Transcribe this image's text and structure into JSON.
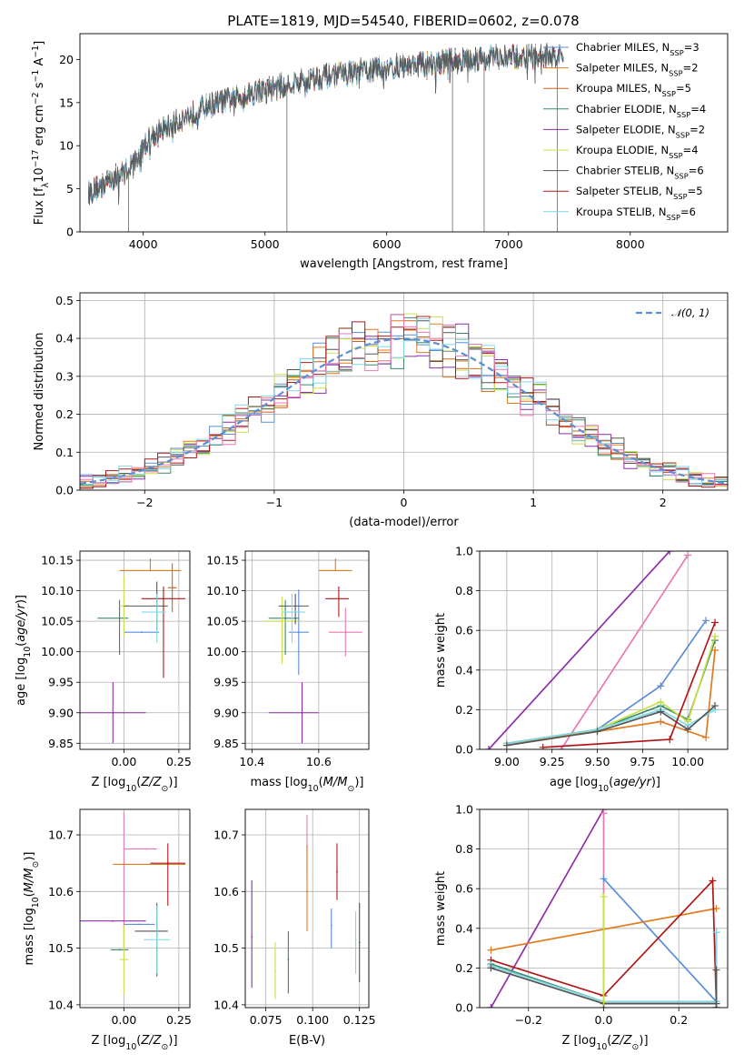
{
  "title": "PLATE=1819, MJD=54540, FIBERID=0602, z=0.078",
  "colors": {
    "Chabrier MILES": "#5b8dd8",
    "Salpeter MILES": "#e07b1e",
    "Kroupa MILES": "#c8651b",
    "Chabrier ELODIE": "#3a8a6a",
    "Salpeter ELODIE": "#8e2faa",
    "Kroupa ELODIE": "#c8e04a",
    "Chabrier STELIB": "#555555",
    "Salpeter STELIB": "#b01818",
    "Kroupa STELIB": "#7fd9e6",
    "pink": "#e77ab4",
    "normal_curve": "#5b8dd8"
  },
  "chart_data": [
    {
      "type": "line",
      "name": "spectrum",
      "xlabel": "wavelength [Angstrom, rest frame]",
      "ylabel": "Flux [f_λ 10^-17 erg cm^-2 s^-1 A^-1]",
      "xlim": [
        3480,
        8800
      ],
      "ylim": [
        0,
        23
      ],
      "xticks": [
        4000,
        5000,
        6000,
        7000,
        8000
      ],
      "yticks": [
        0,
        5,
        10,
        15,
        20
      ],
      "legend_position": "top-right",
      "legend": [
        {
          "label": "Chabrier MILES, N_SSP=3",
          "base": "Chabrier MILES, N",
          "sub": "SSP",
          "tail": "=3"
        },
        {
          "label": "Salpeter MILES, N_SSP=2",
          "base": "Salpeter MILES, N",
          "sub": "SSP",
          "tail": "=2"
        },
        {
          "label": "Kroupa MILES, N_SSP=5",
          "base": "Kroupa MILES, N",
          "sub": "SSP",
          "tail": "=5"
        },
        {
          "label": "Chabrier ELODIE, N_SSP=4",
          "base": "Chabrier ELODIE, N",
          "sub": "SSP",
          "tail": "=4"
        },
        {
          "label": "Salpeter ELODIE, N_SSP=2",
          "base": "Salpeter ELODIE, N",
          "sub": "SSP",
          "tail": "=2"
        },
        {
          "label": "Kroupa ELODIE, N_SSP=4",
          "base": "Kroupa ELODIE, N",
          "sub": "SSP",
          "tail": "=4"
        },
        {
          "label": "Chabrier STELIB, N_SSP=6",
          "base": "Chabrier STELIB, N",
          "sub": "SSP",
          "tail": "=6"
        },
        {
          "label": "Salpeter STELIB, N_SSP=5",
          "base": "Salpeter STELIB, N",
          "sub": "SSP",
          "tail": "=5"
        },
        {
          "label": "Kroupa STELIB, N_SSP=6",
          "base": "Kroupa STELIB, N",
          "sub": "SSP",
          "tail": "=6"
        }
      ],
      "continuum": {
        "x": [
          3550,
          3700,
          3850,
          3950,
          4050,
          4150,
          4300,
          4500,
          4700,
          4900,
          5100,
          5300,
          5500,
          5700,
          5900,
          6100,
          6300,
          6500,
          6700,
          6900,
          7100,
          7300,
          7450
        ],
        "y": [
          4.5,
          5.8,
          7.0,
          8.5,
          11.0,
          11.8,
          13.0,
          14.5,
          15.3,
          16.2,
          16.8,
          17.5,
          18.1,
          18.5,
          18.8,
          19.2,
          19.5,
          19.8,
          20.0,
          20.2,
          20.3,
          20.4,
          20.3
        ]
      },
      "drops": [
        3880,
        5180,
        6540,
        6800,
        7400
      ]
    },
    {
      "type": "line",
      "name": "residual-histogram",
      "xlabel": "(data-model)/error",
      "ylabel": "Normed distribution",
      "xlim": [
        -2.5,
        2.5
      ],
      "ylim": [
        0,
        0.52
      ],
      "xticks": [
        -2,
        -1,
        0,
        1,
        2
      ],
      "yticks": [
        0,
        0.1,
        0.2,
        0.3,
        0.4,
        0.5
      ],
      "legend_position": "top-right",
      "reference_label": "N(0,1)",
      "bin_edges_range": [
        -2.5,
        2.5
      ],
      "bins": 50,
      "amplitude": 0.399
    },
    {
      "type": "scatter",
      "name": "age-vs-Z",
      "xlabel": "Z [log10(Z/Z⊙)]",
      "ylabel": "age  [log10(age/yr)]",
      "xlim": [
        -0.2,
        0.3
      ],
      "ylim": [
        9.84,
        10.165
      ],
      "xticks": [
        0,
        0.25
      ],
      "yticks": [
        9.85,
        9.9,
        9.95,
        10.0,
        10.05,
        10.1,
        10.15
      ],
      "points": [
        {
          "series": "Chabrier MILES",
          "x": 0.08,
          "xerr": [
            0.08,
            0.08
          ],
          "y": 10.032,
          "yerr": [
            0,
            0
          ]
        },
        {
          "series": "Salpeter MILES",
          "x": 0.12,
          "xerr": [
            0.14,
            0.14
          ],
          "y": 10.133,
          "yerr": [
            0,
            0.02
          ]
        },
        {
          "series": "Kroupa MILES",
          "x": 0.22,
          "xerr": [
            0.02,
            0.02
          ],
          "y": 10.105,
          "yerr": [
            0.04,
            0.04
          ]
        },
        {
          "series": "Chabrier ELODIE",
          "x": -0.02,
          "xerr": [
            0.1,
            0.04
          ],
          "y": 10.055,
          "yerr": [
            0.06,
            0.03
          ]
        },
        {
          "series": "Salpeter ELODIE",
          "x": -0.05,
          "xerr": [
            0.15,
            0.15
          ],
          "y": 9.9,
          "yerr": [
            0.05,
            0.05
          ]
        },
        {
          "series": "Kroupa ELODIE",
          "x": 0.0,
          "xerr": [
            0.02,
            0.02
          ],
          "y": 10.075,
          "yerr": [
            0.05,
            0.05
          ]
        },
        {
          "series": "Chabrier STELIB",
          "x": 0.15,
          "xerr": [
            0.15,
            0.05
          ],
          "y": 10.075,
          "yerr": [
            0.04,
            0.04
          ]
        },
        {
          "series": "Salpeter STELIB",
          "x": 0.18,
          "xerr": [
            0.1,
            0.1
          ],
          "y": 10.087,
          "yerr": [
            0.13,
            0.02
          ]
        },
        {
          "series": "Kroupa STELIB",
          "x": 0.15,
          "xerr": [
            0.07,
            0.04
          ],
          "y": 10.065,
          "yerr": [
            0.05,
            0.03
          ]
        }
      ]
    },
    {
      "type": "scatter",
      "name": "age-vs-mass",
      "xlabel": "mass [log10(M/M⊙)]",
      "ylabel": "",
      "xlim": [
        10.38,
        10.75
      ],
      "ylim": [
        9.84,
        10.165
      ],
      "xticks": [
        10.4,
        10.6
      ],
      "yticks": [
        9.85,
        9.9,
        9.95,
        10.0,
        10.05,
        10.1,
        10.15
      ],
      "points": [
        {
          "series": "Chabrier MILES",
          "x": 10.54,
          "xerr": [
            0.03,
            0.03
          ],
          "y": 10.032,
          "yerr": [
            0.07,
            0.07
          ]
        },
        {
          "series": "Salpeter MILES",
          "x": 10.65,
          "xerr": [
            0.05,
            0.05
          ],
          "y": 10.133,
          "yerr": [
            0,
            0.02
          ]
        },
        {
          "series": "Pink",
          "x": 10.68,
          "xerr": [
            0.05,
            0.05
          ],
          "y": 10.032,
          "yerr": [
            0.04,
            0.04
          ]
        },
        {
          "series": "Chabrier ELODIE",
          "x": 10.5,
          "xerr": [
            0.05,
            0.04
          ],
          "y": 10.055,
          "yerr": [
            0.06,
            0.03
          ]
        },
        {
          "series": "Salpeter ELODIE",
          "x": 10.55,
          "xerr": [
            0.1,
            0.05
          ],
          "y": 9.9,
          "yerr": [
            0.05,
            0.05
          ]
        },
        {
          "series": "Kroupa ELODIE",
          "x": 10.49,
          "xerr": [
            0.05,
            0.05
          ],
          "y": 10.05,
          "yerr": [
            0.07,
            0.04
          ]
        },
        {
          "series": "Chabrier STELIB",
          "x": 10.53,
          "xerr": [
            0.05,
            0.04
          ],
          "y": 10.075,
          "yerr": [
            0.03,
            0.02
          ]
        },
        {
          "series": "Salpeter STELIB",
          "x": 10.66,
          "xerr": [
            0.04,
            0.03
          ],
          "y": 10.087,
          "yerr": [
            0.03,
            0.02
          ]
        },
        {
          "series": "Kroupa STELIB",
          "x": 10.52,
          "xerr": [
            0.03,
            0.04
          ],
          "y": 10.065,
          "yerr": [
            0.05,
            0.03
          ]
        }
      ]
    },
    {
      "type": "line",
      "name": "mass-weight-vs-age",
      "xlabel": "age  [log10(age/yr)]",
      "ylabel": "mass weight",
      "xlim": [
        8.85,
        10.22
      ],
      "ylim": [
        0,
        1.0
      ],
      "xticks": [
        9.0,
        9.25,
        9.5,
        9.75,
        10.0
      ],
      "yticks": [
        0,
        0.2,
        0.4,
        0.6,
        0.8,
        1.0
      ],
      "lines": [
        {
          "series": "Salpeter ELODIE",
          "x": [
            8.9,
            9.9
          ],
          "y": [
            0.0,
            1.0
          ]
        },
        {
          "series": "Pink",
          "x": [
            9.3,
            10.0
          ],
          "y": [
            0.0,
            0.98
          ]
        },
        {
          "series": "Chabrier MILES",
          "x": [
            9.0,
            9.5,
            9.85,
            10.1
          ],
          "y": [
            0.03,
            0.1,
            0.32,
            0.65
          ]
        },
        {
          "series": "Chabrier ELODIE",
          "x": [
            9.0,
            9.5,
            9.85,
            10.0,
            10.15
          ],
          "y": [
            0.03,
            0.1,
            0.22,
            0.15,
            0.55
          ]
        },
        {
          "series": "Kroupa ELODIE",
          "x": [
            9.0,
            9.5,
            9.85,
            10.0,
            10.15
          ],
          "y": [
            0.03,
            0.1,
            0.24,
            0.14,
            0.57
          ]
        },
        {
          "series": "Salpeter MILES",
          "x": [
            9.0,
            9.5,
            9.85,
            10.1,
            10.15
          ],
          "y": [
            0.03,
            0.09,
            0.14,
            0.06,
            0.5
          ]
        },
        {
          "series": "Kroupa STELIB",
          "x": [
            9.0,
            9.5,
            9.85,
            10.0,
            10.15
          ],
          "y": [
            0.03,
            0.1,
            0.2,
            0.12,
            0.2
          ]
        },
        {
          "series": "Chabrier STELIB",
          "x": [
            9.0,
            9.5,
            9.85,
            10.0,
            10.15
          ],
          "y": [
            0.02,
            0.09,
            0.19,
            0.1,
            0.22
          ]
        },
        {
          "series": "Salpeter STELIB",
          "x": [
            9.2,
            9.9,
            10.15
          ],
          "y": [
            0.01,
            0.05,
            0.64
          ]
        }
      ]
    },
    {
      "type": "scatter",
      "name": "mass-vs-Z",
      "xlabel": "Z [log10(Z/Z⊙)]",
      "ylabel": "mass [log10(M/M⊙)]",
      "xlim": [
        -0.2,
        0.3
      ],
      "ylim": [
        10.395,
        10.745
      ],
      "xticks": [
        0,
        0.25
      ],
      "yticks": [
        10.4,
        10.5,
        10.6,
        10.7
      ],
      "points": [
        {
          "series": "Pink",
          "x": 0.0,
          "xerr": [
            0,
            0
          ],
          "y": 10.6,
          "yerr": [
            0.1,
            0.14
          ]
        },
        {
          "series": "Pink2",
          "x": 0.1,
          "xerr": [
            0.1,
            0.05
          ],
          "y": 10.675,
          "yerr": [
            0,
            0
          ]
        },
        {
          "series": "Salpeter MILES",
          "x": 0.0,
          "xerr": [
            0.05,
            0.28
          ],
          "y": 10.648,
          "yerr": [
            0,
            0
          ]
        },
        {
          "series": "Salpeter STELIB",
          "x": 0.2,
          "xerr": [
            0.08,
            0.08
          ],
          "y": 10.65,
          "yerr": [
            0.075,
            0.035
          ]
        },
        {
          "series": "Salpeter ELODIE",
          "x": -0.05,
          "xerr": [
            0.15,
            0.15
          ],
          "y": 10.548,
          "yerr": [
            0,
            0
          ]
        },
        {
          "series": "Chabrier MILES",
          "x": 0.07,
          "xerr": [
            0.07,
            0.07
          ],
          "y": 10.542,
          "yerr": [
            0,
            0
          ]
        },
        {
          "series": "Chabrier STELIB",
          "x": 0.15,
          "xerr": [
            0.1,
            0.05
          ],
          "y": 10.53,
          "yerr": [
            0.08,
            0.05
          ]
        },
        {
          "series": "Kroupa STELIB",
          "x": 0.15,
          "xerr": [
            0.06,
            0.06
          ],
          "y": 10.515,
          "yerr": [
            0.06,
            0.06
          ]
        },
        {
          "series": "Chabrier ELODIE",
          "x": -0.02,
          "xerr": [
            0.04,
            0.04
          ],
          "y": 10.497,
          "yerr": [
            0,
            0
          ]
        },
        {
          "series": "Kroupa ELODIE",
          "x": 0.0,
          "xerr": [
            0.02,
            0.02
          ],
          "y": 10.48,
          "yerr": [
            0.06,
            0.06
          ]
        }
      ]
    },
    {
      "type": "scatter",
      "name": "mass-vs-EBV",
      "xlabel": "E(B-V)",
      "ylabel": "",
      "xlim": [
        0.064,
        0.13
      ],
      "ylim": [
        10.395,
        10.745
      ],
      "xticks": [
        0.075,
        0.1,
        0.125
      ],
      "yticks": [
        10.4,
        10.5,
        10.6,
        10.7
      ],
      "points": [
        {
          "series": "Salpeter ELODIE",
          "x": 0.0675,
          "y": 10.52,
          "yerr": [
            0.09,
            0.1
          ]
        },
        {
          "series": "Kroupa ELODIE",
          "x": 0.08,
          "y": 10.46,
          "yerr": [
            0.05,
            0.05
          ]
        },
        {
          "series": "Chabrier ELODIE",
          "x": 0.087,
          "y": 10.48,
          "yerr": [
            0.06,
            0.05
          ]
        },
        {
          "series": "Pink",
          "x": 0.097,
          "y": 10.68,
          "yerr": [
            0.05,
            0.055
          ]
        },
        {
          "series": "Salpeter MILES",
          "x": 0.097,
          "y": 10.6,
          "yerr": [
            0.07,
            0.08
          ]
        },
        {
          "series": "Salpeter STELIB",
          "x": 0.113,
          "y": 10.635,
          "yerr": [
            0.05,
            0.05
          ]
        },
        {
          "series": "Chabrier MILES",
          "x": 0.11,
          "y": 10.54,
          "yerr": [
            0.04,
            0.03
          ]
        },
        {
          "series": "Kroupa STELIB",
          "x": 0.123,
          "y": 10.515,
          "yerr": [
            0.06,
            0.05
          ]
        },
        {
          "series": "Chabrier STELIB",
          "x": 0.125,
          "y": 10.51,
          "yerr": [
            0.07,
            0.07
          ]
        }
      ]
    },
    {
      "type": "line",
      "name": "mass-weight-vs-Z",
      "xlabel": "Z [log10(Z/Z⊙)]",
      "ylabel": "mass weight",
      "xlim": [
        -0.33,
        0.33
      ],
      "ylim": [
        0,
        1.0
      ],
      "xticks": [
        -0.2,
        0.0,
        0.2
      ],
      "yticks": [
        0,
        0.2,
        0.4,
        0.6,
        0.8,
        1.0
      ],
      "lines": [
        {
          "series": "Salpeter ELODIE",
          "x": [
            -0.3,
            0.0
          ],
          "y": [
            0.0,
            1.0
          ]
        },
        {
          "series": "Pink",
          "x": [
            0.0,
            0.0
          ],
          "y": [
            0.0,
            0.98
          ]
        },
        {
          "series": "Chabrier MILES",
          "x": [
            0.0,
            0.3,
            0.3
          ],
          "y": [
            0.65,
            0.03,
            0.0
          ]
        },
        {
          "series": "Salpeter MILES",
          "x": [
            -0.3,
            0.3
          ],
          "y": [
            0.29,
            0.5
          ]
        },
        {
          "series": "Salpeter STELIB",
          "x": [
            -0.3,
            0.0,
            0.29,
            0.3
          ],
          "y": [
            0.24,
            0.06,
            0.64,
            0.0
          ]
        },
        {
          "series": "Chabrier ELODIE",
          "x": [
            -0.3,
            0.0,
            0.3,
            0.3
          ],
          "y": [
            0.22,
            0.03,
            0.03,
            0.38
          ]
        },
        {
          "series": "Kroupa STELIB",
          "x": [
            -0.3,
            0.0,
            0.3,
            0.3
          ],
          "y": [
            0.21,
            0.03,
            0.03,
            0.38
          ]
        },
        {
          "series": "Chabrier STELIB",
          "x": [
            -0.3,
            0.0,
            0.3,
            0.3
          ],
          "y": [
            0.2,
            0.02,
            0.02,
            0.19
          ]
        },
        {
          "series": "Kroupa ELODIE",
          "x": [
            0.0,
            0.0
          ],
          "y": [
            0.03,
            0.56
          ]
        }
      ]
    }
  ]
}
